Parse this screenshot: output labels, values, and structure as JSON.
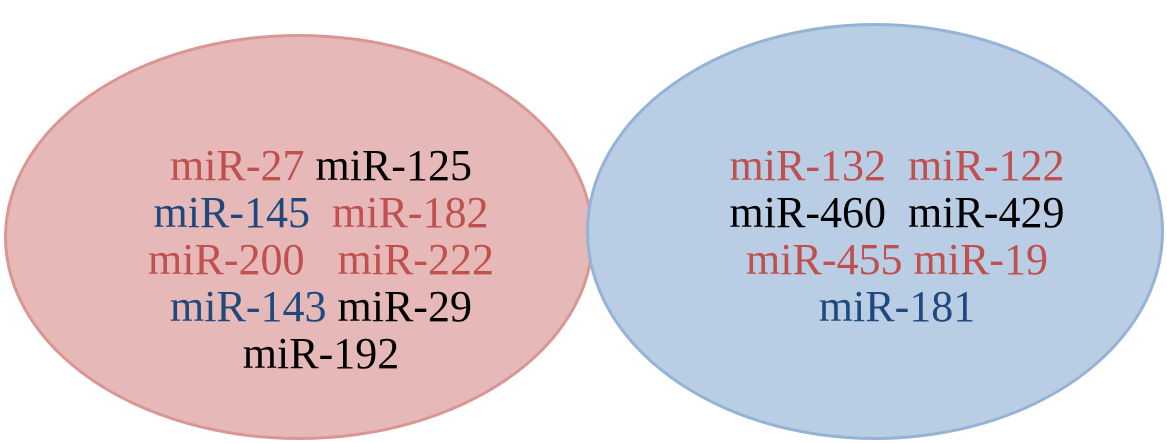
{
  "left_set": {
    "rows": [
      [
        {
          "text": "miR-27",
          "color": "red"
        },
        {
          "text": " miR-125",
          "color": "black"
        }
      ],
      [
        {
          "text": "miR-145",
          "color": "blue"
        },
        {
          "text": "  miR-182",
          "color": "red"
        }
      ],
      [
        {
          "text": "miR-200   miR-222",
          "color": "red"
        }
      ],
      [
        {
          "text": "miR-143",
          "color": "blue"
        },
        {
          "text": " miR-29",
          "color": "black"
        }
      ],
      [
        {
          "text": "miR-192",
          "color": "black"
        }
      ]
    ]
  },
  "right_set": {
    "rows": [
      [
        {
          "text": "miR-132  miR-122",
          "color": "red"
        }
      ],
      [
        {
          "text": "miR-460  miR-429",
          "color": "black"
        }
      ],
      [
        {
          "text": "miR-455 miR-19",
          "color": "red"
        }
      ],
      [
        {
          "text": "miR-181",
          "color": "blue"
        }
      ]
    ]
  },
  "colors": {
    "red": "#c0504d",
    "blue": "#1f497d",
    "black": "#000000",
    "left_fill": "#e6b8b7",
    "left_stroke": "#d99694",
    "right_fill": "#b9cde5",
    "right_stroke": "#95b3d7"
  }
}
